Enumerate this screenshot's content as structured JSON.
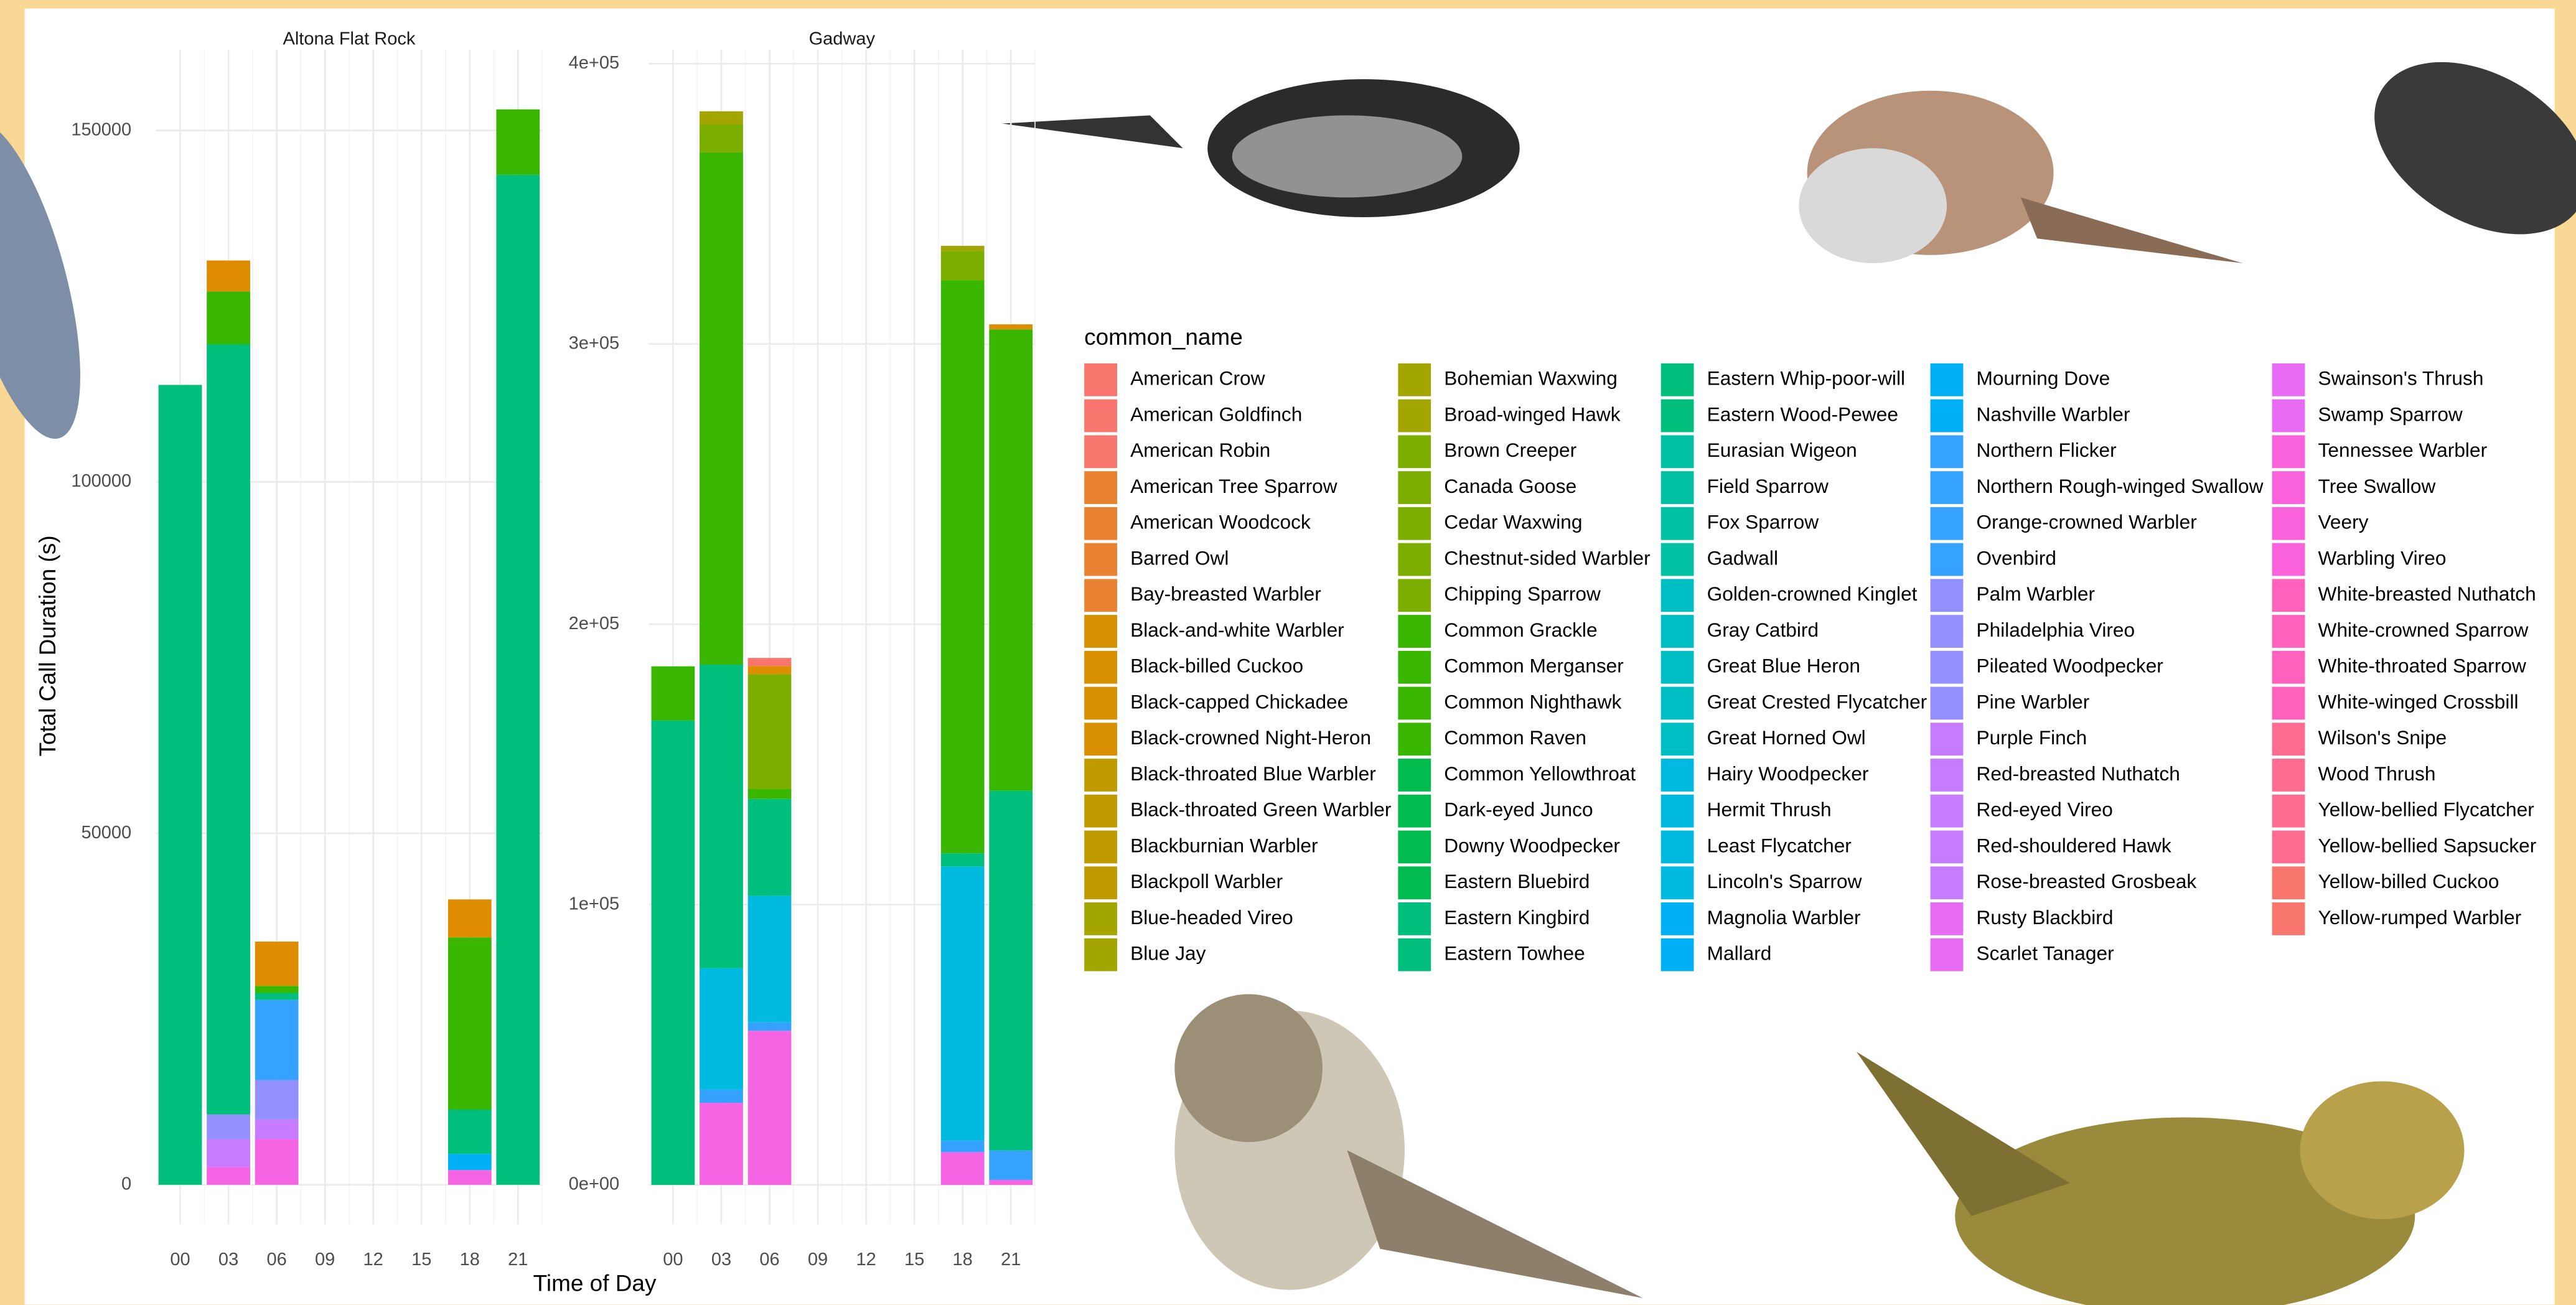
{
  "x_label": "Time of Day",
  "y_label": "Total Call Duration (s)",
  "legend": {
    "title": "common_name",
    "entries": [
      {
        "name": "American Crow",
        "color": "#F8766D"
      },
      {
        "name": "American Goldfinch",
        "color": "#F8766D"
      },
      {
        "name": "American Robin",
        "color": "#F8766D"
      },
      {
        "name": "American Tree Sparrow",
        "color": "#EA8331"
      },
      {
        "name": "American Woodcock",
        "color": "#EA8331"
      },
      {
        "name": "Barred Owl",
        "color": "#EA8331"
      },
      {
        "name": "Bay-breasted Warbler",
        "color": "#EA8331"
      },
      {
        "name": "Black-and-white Warbler",
        "color": "#D89000"
      },
      {
        "name": "Black-billed Cuckoo",
        "color": "#D89000"
      },
      {
        "name": "Black-capped Chickadee",
        "color": "#D89000"
      },
      {
        "name": "Black-crowned Night-Heron",
        "color": "#D89000"
      },
      {
        "name": "Black-throated Blue Warbler",
        "color": "#C09B00"
      },
      {
        "name": "Black-throated Green Warbler",
        "color": "#C09B00"
      },
      {
        "name": "Blackburnian Warbler",
        "color": "#C09B00"
      },
      {
        "name": "Blackpoll Warbler",
        "color": "#C09B00"
      },
      {
        "name": "Blue-headed Vireo",
        "color": "#A3A500"
      },
      {
        "name": "Blue Jay",
        "color": "#A3A500"
      },
      {
        "name": "Bohemian Waxwing",
        "color": "#A3A500"
      },
      {
        "name": "Broad-winged Hawk",
        "color": "#A3A500"
      },
      {
        "name": "Brown Creeper",
        "color": "#7CAE00"
      },
      {
        "name": "Canada Goose",
        "color": "#7CAE00"
      },
      {
        "name": "Cedar Waxwing",
        "color": "#7CAE00"
      },
      {
        "name": "Chestnut-sided Warbler",
        "color": "#7CAE00"
      },
      {
        "name": "Chipping Sparrow",
        "color": "#7CAE00"
      },
      {
        "name": "Common Grackle",
        "color": "#39B600"
      },
      {
        "name": "Common Merganser",
        "color": "#39B600"
      },
      {
        "name": "Common Nighthawk",
        "color": "#39B600"
      },
      {
        "name": "Common Raven",
        "color": "#39B600"
      },
      {
        "name": "Common Yellowthroat",
        "color": "#00BB4E"
      },
      {
        "name": "Dark-eyed Junco",
        "color": "#00BB4E"
      },
      {
        "name": "Downy Woodpecker",
        "color": "#00BB4E"
      },
      {
        "name": "Eastern Bluebird",
        "color": "#00BB4E"
      },
      {
        "name": "Eastern Kingbird",
        "color": "#00BF7D"
      },
      {
        "name": "Eastern Towhee",
        "color": "#00BF7D"
      },
      {
        "name": "Eastern Whip-poor-will",
        "color": "#00BF7D"
      },
      {
        "name": "Eastern Wood-Pewee",
        "color": "#00BF7D"
      },
      {
        "name": "Eurasian Wigeon",
        "color": "#00C1A3"
      },
      {
        "name": "Field Sparrow",
        "color": "#00C1A3"
      },
      {
        "name": "Fox Sparrow",
        "color": "#00C1A3"
      },
      {
        "name": "Gadwall",
        "color": "#00C1A3"
      },
      {
        "name": "Golden-crowned Kinglet",
        "color": "#00BFC4"
      },
      {
        "name": "Gray Catbird",
        "color": "#00BFC4"
      },
      {
        "name": "Great Blue Heron",
        "color": "#00BFC4"
      },
      {
        "name": "Great Crested Flycatcher",
        "color": "#00BFC4"
      },
      {
        "name": "Great Horned Owl",
        "color": "#00BFC4"
      },
      {
        "name": "Hairy Woodpecker",
        "color": "#00BAE0"
      },
      {
        "name": "Hermit Thrush",
        "color": "#00BAE0"
      },
      {
        "name": "Least Flycatcher",
        "color": "#00BAE0"
      },
      {
        "name": "Lincoln's Sparrow",
        "color": "#00BAE0"
      },
      {
        "name": "Magnolia Warbler",
        "color": "#00B0F6"
      },
      {
        "name": "Mallard",
        "color": "#00B0F6"
      },
      {
        "name": "Mourning Dove",
        "color": "#00B0F6"
      },
      {
        "name": "Nashville Warbler",
        "color": "#00B0F6"
      },
      {
        "name": "Northern Flicker",
        "color": "#35A2FF"
      },
      {
        "name": "Northern Rough-winged Swallow",
        "color": "#35A2FF"
      },
      {
        "name": "Orange-crowned Warbler",
        "color": "#35A2FF"
      },
      {
        "name": "Ovenbird",
        "color": "#35A2FF"
      },
      {
        "name": "Palm Warbler",
        "color": "#9590FF"
      },
      {
        "name": "Philadelphia Vireo",
        "color": "#9590FF"
      },
      {
        "name": "Pileated Woodpecker",
        "color": "#9590FF"
      },
      {
        "name": "Pine Warbler",
        "color": "#9590FF"
      },
      {
        "name": "Purple Finch",
        "color": "#C77CFF"
      },
      {
        "name": "Red-breasted Nuthatch",
        "color": "#C77CFF"
      },
      {
        "name": "Red-eyed Vireo",
        "color": "#C77CFF"
      },
      {
        "name": "Red-shouldered Hawk",
        "color": "#C77CFF"
      },
      {
        "name": "Rose-breasted Grosbeak",
        "color": "#C77CFF"
      },
      {
        "name": "Rusty Blackbird",
        "color": "#E76BF3"
      },
      {
        "name": "Scarlet Tanager",
        "color": "#E76BF3"
      },
      {
        "name": "Swainson's Thrush",
        "color": "#E76BF3"
      },
      {
        "name": "Swamp Sparrow",
        "color": "#E76BF3"
      },
      {
        "name": "Tennessee Warbler",
        "color": "#FA62DB"
      },
      {
        "name": "Tree Swallow",
        "color": "#FA62DB"
      },
      {
        "name": "Veery",
        "color": "#FA62DB"
      },
      {
        "name": "Warbling Vireo",
        "color": "#FA62DB"
      },
      {
        "name": "White-breasted Nuthatch",
        "color": "#FF62BC"
      },
      {
        "name": "White-crowned Sparrow",
        "color": "#FF62BC"
      },
      {
        "name": "White-throated Sparrow",
        "color": "#FF62BC"
      },
      {
        "name": "White-winged Crossbill",
        "color": "#FF62BC"
      },
      {
        "name": "Wilson's Snipe",
        "color": "#FF6C91"
      },
      {
        "name": "Wood Thrush",
        "color": "#FF6C91"
      },
      {
        "name": "Yellow-bellied Flycatcher",
        "color": "#FF6C91"
      },
      {
        "name": "Yellow-bellied Sapsucker",
        "color": "#FF6C91"
      },
      {
        "name": "Yellow-billed Cuckoo",
        "color": "#F8766D"
      },
      {
        "name": "Yellow-rumped Warbler",
        "color": "#F8766D"
      }
    ]
  },
  "chart_data": [
    {
      "type": "bar",
      "stacked": true,
      "title": "Altona Flat Rock",
      "categories": [
        "00",
        "03",
        "06",
        "09",
        "12",
        "15",
        "18",
        "21"
      ],
      "ylim": [
        -5600,
        161500
      ],
      "yticks": [
        0,
        50000,
        100000,
        150000
      ],
      "grid": true,
      "series": [
        {
          "name": "Swamp Sparrow",
          "color": "#F564E3",
          "values": [
            0,
            2500,
            6500,
            0,
            0,
            0,
            2100,
            0
          ]
        },
        {
          "name": "Red-eyed Vireo",
          "color": "#C77CFF",
          "values": [
            0,
            4000,
            2800,
            0,
            0,
            0,
            0,
            0
          ]
        },
        {
          "name": "Pileated Woodpecker",
          "color": "#9590FF",
          "values": [
            0,
            3500,
            5600,
            0,
            0,
            0,
            0,
            0
          ]
        },
        {
          "name": "Ovenbird",
          "color": "#35A2FF",
          "values": [
            0,
            0,
            11400,
            0,
            0,
            0,
            0,
            0
          ]
        },
        {
          "name": "Mallard",
          "color": "#00B0F6",
          "values": [
            0,
            0,
            0,
            0,
            0,
            0,
            2300,
            0
          ]
        },
        {
          "name": "Eastern Whip-poor-will",
          "color": "#00BF7D",
          "values": [
            113800,
            109600,
            1000,
            0,
            0,
            0,
            6300,
            143700
          ]
        },
        {
          "name": "Common Nighthawk",
          "color": "#39B600",
          "values": [
            0,
            7500,
            1000,
            0,
            0,
            0,
            24500,
            9300
          ]
        },
        {
          "name": "American Woodcock",
          "color": "#DE8C00",
          "values": [
            0,
            4400,
            6300,
            0,
            0,
            0,
            5400,
            0
          ]
        }
      ]
    },
    {
      "type": "bar",
      "stacked": true,
      "title": "Gadway",
      "categories": [
        "00",
        "03",
        "06",
        "09",
        "12",
        "15",
        "18",
        "21"
      ],
      "ylim": [
        -14000,
        405000
      ],
      "yticks": [
        {
          "value": 0,
          "label": "0e+00"
        },
        {
          "value": 100000,
          "label": "1e+05"
        },
        {
          "value": 200000,
          "label": "2e+05"
        },
        {
          "value": 300000,
          "label": "3e+05"
        },
        {
          "value": 400000,
          "label": "4e+05"
        }
      ],
      "grid": true,
      "series": [
        {
          "name": "Swamp Sparrow",
          "color": "#F564E3",
          "values": [
            0,
            29300,
            55000,
            0,
            0,
            0,
            11700,
            1800
          ]
        },
        {
          "name": "Ovenbird",
          "color": "#35A2FF",
          "values": [
            0,
            4700,
            3000,
            0,
            0,
            0,
            4100,
            10500
          ]
        },
        {
          "name": "Mallard",
          "color": "#00BAE0",
          "values": [
            0,
            43300,
            45100,
            0,
            0,
            0,
            97800,
            0
          ]
        },
        {
          "name": "Eastern Whip-poor-will",
          "color": "#00BF7D",
          "values": [
            165700,
            108300,
            34600,
            0,
            0,
            0,
            4700,
            128300
          ]
        },
        {
          "name": "Common Nighthawk",
          "color": "#39B600",
          "values": [
            19300,
            182700,
            3500,
            0,
            0,
            0,
            204400,
            164600
          ]
        },
        {
          "name": "Chipping Sparrow",
          "color": "#7CAE00",
          "values": [
            0,
            10000,
            41000,
            0,
            0,
            0,
            10500,
            0
          ]
        },
        {
          "name": "Blue Jay",
          "color": "#A3A500",
          "values": [
            0,
            4700,
            0,
            0,
            0,
            0,
            1800,
            0
          ]
        },
        {
          "name": "American Woodcock",
          "color": "#DE8C00",
          "values": [
            0,
            0,
            2900,
            0,
            0,
            0,
            0,
            1800
          ]
        },
        {
          "name": "American Crow",
          "color": "#F8766D",
          "values": [
            0,
            0,
            2900,
            0,
            0,
            0,
            0,
            0
          ]
        }
      ]
    }
  ]
}
